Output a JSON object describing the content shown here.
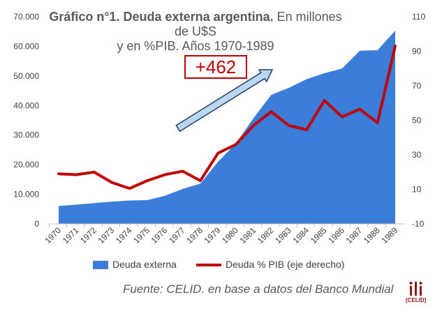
{
  "chart_data": {
    "type": "area",
    "title_bold": "Gráfico n°1. Deuda externa argentina.",
    "title_rest_line1": "En millones de U$S",
    "title_rest_line2": "y en %PIB. Años 1970-1989",
    "categories": [
      "1970",
      "1971",
      "1972",
      "1973",
      "1974",
      "1975",
      "1976",
      "1977",
      "1978",
      "1979",
      "1980",
      "1981",
      "1982",
      "1983",
      "1984",
      "1985",
      "1986",
      "1987",
      "1988",
      "1989"
    ],
    "series": [
      {
        "name": "Deuda externa",
        "kind": "area",
        "axis": "left",
        "color": "#3b7dd8",
        "values": [
          6000,
          6500,
          7000,
          7500,
          7900,
          8000,
          9500,
          11800,
          13600,
          21000,
          27100,
          35700,
          43600,
          46000,
          48900,
          50900,
          52500,
          58500,
          58700,
          65300
        ]
      },
      {
        "name": "Deuda % PIB (eje derecho)",
        "kind": "line",
        "axis": "right",
        "color": "#c00000",
        "values": [
          19,
          18.5,
          20,
          14,
          10.5,
          15,
          18.5,
          20.5,
          15,
          31,
          36,
          47,
          55,
          47,
          44.5,
          61.5,
          52,
          56.5,
          48.5,
          93
        ]
      }
    ],
    "y_left": {
      "min": 0,
      "max": 70000,
      "ticks": [
        "0",
        "10.000",
        "20.000",
        "30.000",
        "40.000",
        "50.000",
        "60.000",
        "70.000"
      ]
    },
    "y_right": {
      "min": -10,
      "max": 110,
      "ticks": [
        "-10",
        "10",
        "30",
        "50",
        "70",
        "90",
        "110"
      ]
    },
    "annotation": "+462",
    "source": "Fuente: CELID. en base a datos del Banco Mundial",
    "logo_text": "[CELID]",
    "legend": "bottom"
  }
}
